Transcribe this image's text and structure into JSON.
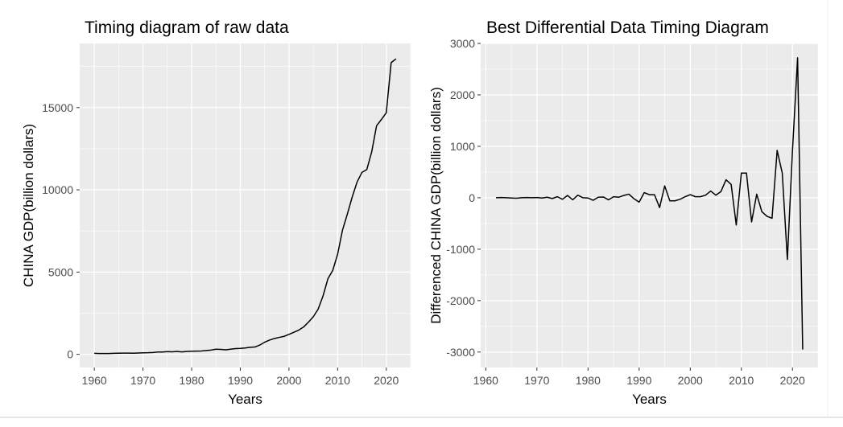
{
  "figure": {
    "background": "#ffffff",
    "panel_background": "#ebebeb",
    "grid_color": "#ffffff",
    "line_color": "#000000"
  },
  "chart_data": [
    {
      "type": "line",
      "title": "Timing diagram of raw data",
      "xlabel": "Years",
      "ylabel": "CHINA GDP(billion dollars)",
      "xlim": [
        1957,
        2025
      ],
      "ylim": [
        -800,
        18900
      ],
      "xticks": [
        1960,
        1970,
        1980,
        1990,
        2000,
        2010,
        2020
      ],
      "xtick_labels": [
        "1960",
        "1970",
        "1980",
        "1990",
        "2000",
        "2010",
        "2020"
      ],
      "yticks": [
        0,
        5000,
        10000,
        15000
      ],
      "ytick_labels": [
        "0",
        "5000",
        "10000",
        "15000"
      ],
      "grid": true,
      "legend": "none",
      "series": [
        {
          "x": [
            1960,
            1961,
            1962,
            1963,
            1964,
            1965,
            1966,
            1967,
            1968,
            1969,
            1970,
            1971,
            1972,
            1973,
            1974,
            1975,
            1976,
            1977,
            1978,
            1979,
            1980,
            1981,
            1982,
            1983,
            1984,
            1985,
            1986,
            1987,
            1988,
            1989,
            1990,
            1991,
            1992,
            1993,
            1994,
            1995,
            1996,
            1997,
            1998,
            1999,
            2000,
            2001,
            2002,
            2003,
            2004,
            2005,
            2006,
            2007,
            2008,
            2009,
            2010,
            2011,
            2012,
            2013,
            2014,
            2015,
            2016,
            2017,
            2018,
            2019,
            2020,
            2021,
            2022
          ],
          "values": [
            60,
            50,
            47,
            50,
            59,
            70,
            76,
            72,
            70,
            79,
            92,
            99,
            113,
            138,
            144,
            163,
            153,
            175,
            150,
            178,
            191,
            196,
            205,
            230,
            260,
            310,
            300,
            273,
            312,
            348,
            361,
            383,
            427,
            445,
            564,
            734,
            864,
            962,
            1029,
            1094,
            1211,
            1339,
            1471,
            1660,
            1955,
            2286,
            2752,
            3550,
            4594,
            5102,
            6087,
            7551,
            8532,
            9570,
            10475,
            11062,
            11233,
            12310,
            13894,
            14280,
            14688,
            17734,
            17963
          ]
        }
      ]
    },
    {
      "type": "line",
      "title": "Best Differential Data Timing Diagram",
      "xlabel": "Years",
      "ylabel": "Differenced CHINA GDP(billion dollars)",
      "xlim": [
        1959,
        2025
      ],
      "ylim": [
        -3300,
        3000
      ],
      "xticks": [
        1960,
        1970,
        1980,
        1990,
        2000,
        2010,
        2020
      ],
      "xtick_labels": [
        "1960",
        "1970",
        "1980",
        "1990",
        "2000",
        "2010",
        "2020"
      ],
      "yticks": [
        -3000,
        -2000,
        -1000,
        0,
        1000,
        2000,
        3000
      ],
      "ytick_labels": [
        "-3000",
        "-2000",
        "-1000",
        "0",
        "1000",
        "2000",
        "3000"
      ],
      "grid": true,
      "legend": "none",
      "series": [
        {
          "x": [
            1962,
            1963,
            1964,
            1965,
            1966,
            1967,
            1968,
            1969,
            1970,
            1971,
            1972,
            1973,
            1974,
            1975,
            1976,
            1977,
            1978,
            1979,
            1980,
            1981,
            1982,
            1983,
            1984,
            1985,
            1986,
            1987,
            1988,
            1989,
            1990,
            1991,
            1992,
            1993,
            1994,
            1995,
            1996,
            1997,
            1998,
            1999,
            2000,
            2001,
            2002,
            2003,
            2004,
            2005,
            2006,
            2007,
            2008,
            2009,
            2010,
            2011,
            2012,
            2013,
            2014,
            2015,
            2016,
            2017,
            2018,
            2019,
            2020,
            2021,
            2022
          ],
          "values": [
            0,
            5,
            0,
            -5,
            -10,
            0,
            5,
            0,
            5,
            -5,
            10,
            -15,
            20,
            -30,
            45,
            -40,
            50,
            0,
            -5,
            -50,
            10,
            15,
            -40,
            20,
            10,
            45,
            70,
            -20,
            -85,
            100,
            60,
            60,
            -190,
            230,
            -60,
            -60,
            -30,
            20,
            60,
            20,
            20,
            50,
            130,
            50,
            120,
            350,
            260,
            -530,
            480,
            480,
            -470,
            70,
            -270,
            -360,
            -400,
            920,
            480,
            -1200,
            920,
            2720,
            -2950
          ]
        }
      ]
    }
  ]
}
